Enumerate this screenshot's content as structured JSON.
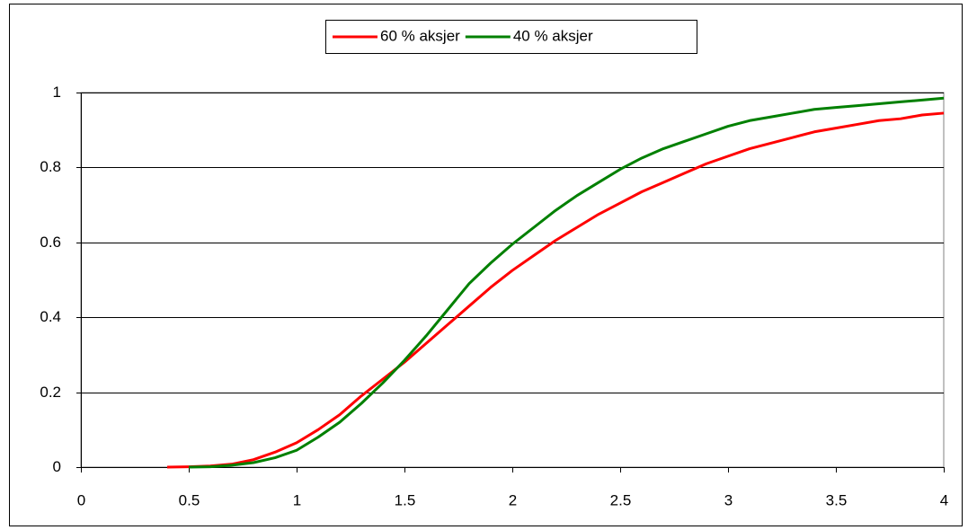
{
  "chart_data": {
    "type": "line",
    "x": [
      0.4,
      0.5,
      0.6,
      0.7,
      0.8,
      0.9,
      1.0,
      1.1,
      1.2,
      1.3,
      1.4,
      1.5,
      1.6,
      1.7,
      1.8,
      1.9,
      2.0,
      2.1,
      2.2,
      2.3,
      2.4,
      2.5,
      2.6,
      2.7,
      2.8,
      2.9,
      3.0,
      3.1,
      3.2,
      3.3,
      3.4,
      3.5,
      3.6,
      3.7,
      3.8,
      3.9,
      4.0
    ],
    "series": [
      {
        "name": "60 % aksjer",
        "color": "#ff0000",
        "values": [
          0,
          0.001,
          0.003,
          0.008,
          0.02,
          0.04,
          0.065,
          0.1,
          0.14,
          0.19,
          0.235,
          0.28,
          0.33,
          0.38,
          0.43,
          0.48,
          0.525,
          0.565,
          0.605,
          0.64,
          0.675,
          0.705,
          0.735,
          0.76,
          0.785,
          0.81,
          0.83,
          0.85,
          0.865,
          0.88,
          0.895,
          0.905,
          0.915,
          0.925,
          0.93,
          0.94,
          0.945
        ]
      },
      {
        "name": "40 % aksjer",
        "color": "#008000",
        "values": [
          null,
          0,
          0.001,
          0.005,
          0.012,
          0.025,
          0.045,
          0.08,
          0.12,
          0.17,
          0.225,
          0.285,
          0.35,
          0.42,
          0.49,
          0.545,
          0.595,
          0.64,
          0.685,
          0.725,
          0.76,
          0.795,
          0.825,
          0.85,
          0.87,
          0.89,
          0.91,
          0.925,
          0.935,
          0.945,
          0.955,
          0.96,
          0.965,
          0.97,
          0.975,
          0.98,
          0.985
        ]
      }
    ],
    "xlim": [
      0,
      4
    ],
    "xticks": [
      0,
      0.5,
      1,
      1.5,
      2,
      2.5,
      3,
      3.5,
      4
    ],
    "ylim": [
      0,
      1
    ],
    "yticks": [
      0,
      0.2,
      0.4,
      0.6,
      0.8,
      1
    ],
    "grid": true,
    "legend": "top"
  }
}
